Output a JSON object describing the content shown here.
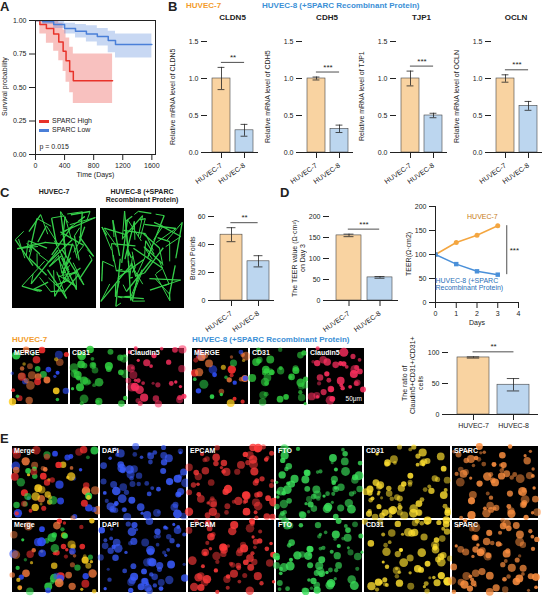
{
  "chart_data": [
    {
      "panel": "A",
      "type": "line",
      "line_style": "step",
      "x_label": "Time (Days)",
      "y_label": "Survival probability",
      "xlim": [
        0,
        1650
      ],
      "xticks": [
        0,
        400,
        800,
        1200,
        1600
      ],
      "ylim": [
        0,
        1
      ],
      "yticks": [
        {
          "value": 0,
          "label": "0.00"
        },
        {
          "value": 0.25,
          "label": "0.25"
        },
        {
          "value": 0.5,
          "label": "0.50"
        },
        {
          "value": 0.75,
          "label": "0.75"
        },
        {
          "value": 1,
          "label": "1.00"
        }
      ],
      "legend": "bottom-left",
      "annotation": "p = 0.015",
      "series": [
        {
          "name": "SPARC High",
          "color": "#e8332a",
          "x": [
            0,
            60,
            150,
            250,
            320,
            380,
            420,
            470,
            520,
            1060
          ],
          "values": [
            1,
            0.97,
            0.94,
            0.9,
            0.84,
            0.77,
            0.7,
            0.62,
            0.55,
            0.55
          ],
          "ci_lower": [
            1,
            0.9,
            0.83,
            0.77,
            0.7,
            0.62,
            0.54,
            0.46,
            0.38,
            0.38
          ],
          "ci_upper": [
            1,
            1,
            1,
            1,
            0.98,
            0.93,
            0.87,
            0.8,
            0.75,
            0.75
          ]
        },
        {
          "name": "SPARC Low",
          "color": "#4a7fd8",
          "x": [
            0,
            100,
            250,
            400,
            550,
            700,
            850,
            1000,
            1100,
            1600
          ],
          "values": [
            1,
            0.99,
            0.97,
            0.94,
            0.92,
            0.9,
            0.88,
            0.85,
            0.82,
            0.82
          ],
          "ci_lower": [
            1,
            0.97,
            0.94,
            0.9,
            0.87,
            0.84,
            0.81,
            0.76,
            0.72,
            0.72
          ],
          "ci_upper": [
            1,
            1,
            1,
            0.98,
            0.97,
            0.96,
            0.94,
            0.92,
            0.9,
            0.9
          ]
        }
      ]
    },
    {
      "panel": "B",
      "type": "bar",
      "title": "CLDN5",
      "y_label": "Relative mRNA level of CLDN5",
      "categories": [
        "HUVEC-7",
        "HUVEC-8"
      ],
      "values": [
        1.0,
        0.3
      ],
      "errors": [
        0.15,
        0.08
      ],
      "colors": [
        "#f9d3a1",
        "#bcd6ef"
      ],
      "ylim": [
        0,
        1.5
      ],
      "yticks": [
        {
          "value": 0,
          "label": "0.0"
        },
        0.5,
        {
          "value": 1,
          "label": "1.0"
        },
        1.5
      ],
      "annotation": "**"
    },
    {
      "type": "bar",
      "title": "CDH5",
      "y_label": "Relative mRNA level of CDH5",
      "categories": [
        "HUVEC-7",
        "HUVEC-8"
      ],
      "values": [
        1.0,
        0.32
      ],
      "errors": [
        0.02,
        0.05
      ],
      "colors": [
        "#f9d3a1",
        "#bcd6ef"
      ],
      "ylim": [
        0,
        1.5
      ],
      "yticks": [
        {
          "value": 0,
          "label": "0.0"
        },
        0.5,
        {
          "value": 1,
          "label": "1.0"
        },
        1.5
      ],
      "annotation": "***"
    },
    {
      "type": "bar",
      "title": "TJP1",
      "y_label": "Relative mRNA level of TJP1",
      "categories": [
        "HUVEC-7",
        "HUVEC-8"
      ],
      "values": [
        1.0,
        0.5
      ],
      "errors": [
        0.1,
        0.03
      ],
      "colors": [
        "#f9d3a1",
        "#bcd6ef"
      ],
      "ylim": [
        0,
        1.5
      ],
      "yticks": [
        {
          "value": 0,
          "label": "0.0"
        },
        0.5,
        {
          "value": 1,
          "label": "1.0"
        },
        1.5
      ],
      "annotation": "***"
    },
    {
      "type": "bar",
      "title": "OCLN",
      "y_label": "Relative mRNA level of OCLN",
      "categories": [
        "HUVEC-7",
        "HUVEC-8"
      ],
      "values": [
        1.0,
        0.63
      ],
      "errors": [
        0.05,
        0.06
      ],
      "colors": [
        "#f9d3a1",
        "#bcd6ef"
      ],
      "ylim": [
        0,
        1.5
      ],
      "yticks": [
        {
          "value": 0,
          "label": "0.0"
        },
        0.5,
        {
          "value": 1,
          "label": "1.0"
        },
        1.5
      ],
      "annotation": "***"
    },
    {
      "panel": "C",
      "type": "bar",
      "y_label": "Branch Points",
      "categories": [
        "HUVEC-7",
        "HUVEC-8"
      ],
      "values": [
        47,
        28
      ],
      "errors": [
        5,
        4
      ],
      "colors": [
        "#f9d3a1",
        "#bcd6ef"
      ],
      "ylim": [
        0,
        60
      ],
      "yticks": [
        0,
        20,
        40,
        60
      ],
      "annotation": "**"
    },
    {
      "panel": "D",
      "type": "bar",
      "y_label": "The TEER value (Ω·cm²) on Day 3",
      "categories": [
        "HUVEC-7",
        "HUVEC-8"
      ],
      "values": [
        155,
        55
      ],
      "errors": [
        3,
        2
      ],
      "colors": [
        "#f9d3a1",
        "#bcd6ef"
      ],
      "ylim": [
        0,
        200
      ],
      "yticks": [
        0,
        50,
        100,
        150,
        200
      ],
      "annotation": "***"
    },
    {
      "type": "line",
      "x_label": "Days",
      "y_label": "TEER(Ω·cm2)",
      "x": [
        0,
        1,
        2,
        3
      ],
      "xlim": [
        0,
        4
      ],
      "xticks": [
        0,
        1,
        2,
        3,
        4
      ],
      "ylim": [
        0,
        200
      ],
      "yticks": [
        0,
        50,
        100,
        150,
        200
      ],
      "annotation": "***",
      "series": [
        {
          "name": "HUVEC-7",
          "color": "#f4a640",
          "marker": "circle",
          "values": [
            100,
            125,
            140,
            160
          ]
        },
        {
          "name": "HUVEC-8 (+SPARC Recombinant Protein)",
          "color": "#4a90d9",
          "marker": "square",
          "values": [
            100,
            80,
            65,
            58
          ]
        }
      ]
    },
    {
      "type": "bar",
      "y_label": "The ratio of Claudin5+CD31+/CD31+ cells",
      "categories": [
        "HUVEC-7",
        "HUVEC-8"
      ],
      "values": [
        92,
        48
      ],
      "errors": [
        1,
        10
      ],
      "colors": [
        "#f9d3a1",
        "#bcd6ef"
      ],
      "ylim": [
        0,
        100
      ],
      "yticks": [
        0,
        50,
        100
      ],
      "annotation": "**"
    }
  ],
  "headers": [
    {
      "text": "HUVEC-7",
      "color": "#f39c2c"
    },
    {
      "text": "HUVEC-8 (+SPARC Recombinant Protein)",
      "color": "#3b8fd6"
    }
  ],
  "images": {
    "C": [
      "HUVEC-7",
      "HUVEC-8 (+SPARC Recombinant Protein)"
    ],
    "staining": {
      "groups": [
        {
          "title": "HUVEC-7",
          "color": "#f39c2c",
          "channels": [
            "MERGE",
            "CD31",
            "Claudin5"
          ]
        },
        {
          "title": "HUVEC-8 (+SPARC Recombinant Protein)",
          "color": "#3b8fd6",
          "channels": [
            "MERGE",
            "CD31",
            "Claudin5"
          ]
        }
      ],
      "scale_bar": "50μm"
    },
    "E": {
      "panel": "E",
      "rows": [
        [
          "Merge",
          "DAPI",
          "EPCAM",
          "FTO",
          "CD31",
          "SPARC"
        ],
        [
          "Merge",
          "DAPI",
          "EPCAM",
          "FTO",
          "CD31",
          "SPARC"
        ]
      ]
    }
  }
}
